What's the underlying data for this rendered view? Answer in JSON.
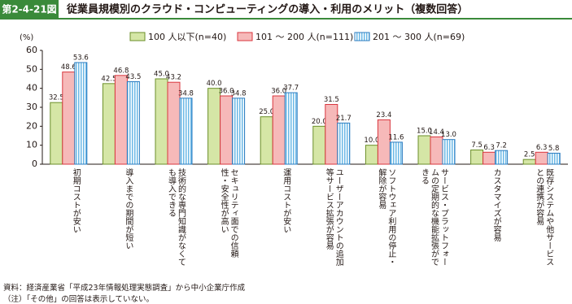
{
  "chart_data": {
    "type": "bar",
    "figure_label": "第2-4-21図",
    "title": "従業員規模別のクラウド・コンピューティングの導入・利用のメリット（複数回答）",
    "y_label": "(%)",
    "categories": [
      "初期コストが安い",
      "導入までの期間が短い",
      "技術的な専門知識がなくても導入できる",
      "セキュリティ面での信頼性・安全性が高い",
      "運用コストが安い",
      "ユーザーアカウントの追加等サービス拡張が容易",
      "ソフトウェア利用の停止・解除が容易",
      "サービス・プラットフォームの定期的な機能拡張ができる",
      "カスタマイズが容易",
      "既存システムや他サービスとの連携が容易"
    ],
    "series": [
      {
        "name": "100 人以下(n=40)",
        "color": "#d5e6a6",
        "values": [
          32.5,
          42.5,
          45.0,
          40.0,
          25.0,
          20.0,
          10.0,
          15.0,
          7.5,
          2.5
        ],
        "value_labels": [
          "32.5",
          "42.5",
          "45.0",
          "40.0",
          "25.0",
          "20.0",
          "10.0",
          "15.0",
          "7.5",
          "2.5"
        ]
      },
      {
        "name": "101 ～ 200 人(n=111)",
        "color": "#f6b9b9",
        "values": [
          48.6,
          46.8,
          43.2,
          36.0,
          36.0,
          31.5,
          23.4,
          14.4,
          6.3,
          6.3
        ],
        "value_labels": [
          "48.6",
          "46.8",
          "43.2",
          "36.0",
          "36.0",
          "31.5",
          "23.4",
          "14.4",
          "6.3",
          "6.3"
        ]
      },
      {
        "name": "201 ～ 300 人(n=69)",
        "color": "#6bb8e6",
        "values": [
          53.6,
          43.5,
          34.8,
          34.8,
          37.7,
          21.7,
          11.6,
          13.0,
          7.2,
          5.8
        ],
        "value_labels": [
          "53.6",
          "43.5",
          "34.8",
          "34.8",
          "37.7",
          "21.7",
          "11.6",
          "13.0",
          "7.2",
          "5.8"
        ]
      }
    ],
    "ylim": [
      0,
      60
    ],
    "yticks": [
      0,
      10,
      20,
      30,
      40,
      50,
      60
    ],
    "source": "資料：経済産業省「平成23年情報処理実態調査」から中小企業庁作成",
    "note": "（注）「その他」の回答は表示していない。"
  }
}
